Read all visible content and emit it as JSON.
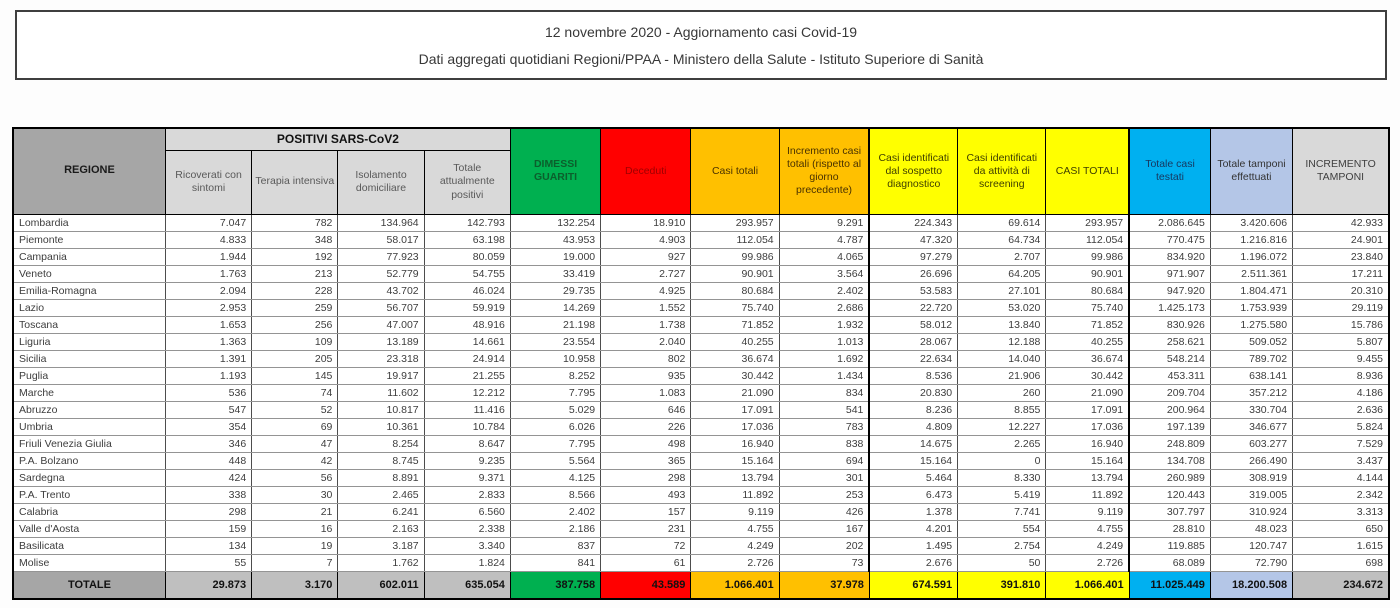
{
  "header": {
    "title": "12 novembre 2020 - Aggiornamento casi Covid-19",
    "subtitle": "Dati aggregati quotidiani Regioni/PPAA - Ministero della Salute - Istituto Superiore di Sanità"
  },
  "colors": {
    "green": "#00B050",
    "red": "#FF0000",
    "orange": "#FFC000",
    "yellow": "#FFFF00",
    "cyan": "#00B0F0",
    "light_blue": "#B4C6E7",
    "header_gray": "#A6A6A6",
    "subheader_gray": "#D9D9D9",
    "totale_gray": "#BFBFBF"
  },
  "table": {
    "regione_header": "REGIONE",
    "positivi_group_header": "POSITIVI SARS-CoV2",
    "columns": [
      {
        "label": "Ricoverati con sintomi"
      },
      {
        "label": "Terapia intensiva"
      },
      {
        "label": "Isolamento domiciliare"
      },
      {
        "label": "Totale attualmente positivi"
      },
      {
        "label": "DIMESSI GUARITI"
      },
      {
        "label": "Deceduti"
      },
      {
        "label": "Casi totali"
      },
      {
        "label": "Incremento casi totali (rispetto al giorno precedente)"
      },
      {
        "label": "Casi identificati dal sospetto diagnostico"
      },
      {
        "label": "Casi identificati da attività di screening"
      },
      {
        "label": "CASI TOTALI"
      },
      {
        "label": "Totale casi testati"
      },
      {
        "label": "Totale tamponi effettuati"
      },
      {
        "label": "INCREMENTO TAMPONI"
      }
    ],
    "rows": [
      [
        "Lombardia",
        "7.047",
        "782",
        "134.964",
        "142.793",
        "132.254",
        "18.910",
        "293.957",
        "9.291",
        "224.343",
        "69.614",
        "293.957",
        "2.086.645",
        "3.420.606",
        "42.933"
      ],
      [
        "Piemonte",
        "4.833",
        "348",
        "58.017",
        "63.198",
        "43.953",
        "4.903",
        "112.054",
        "4.787",
        "47.320",
        "64.734",
        "112.054",
        "770.475",
        "1.216.816",
        "24.901"
      ],
      [
        "Campania",
        "1.944",
        "192",
        "77.923",
        "80.059",
        "19.000",
        "927",
        "99.986",
        "4.065",
        "97.279",
        "2.707",
        "99.986",
        "834.920",
        "1.196.072",
        "23.840"
      ],
      [
        "Veneto",
        "1.763",
        "213",
        "52.779",
        "54.755",
        "33.419",
        "2.727",
        "90.901",
        "3.564",
        "26.696",
        "64.205",
        "90.901",
        "971.907",
        "2.511.361",
        "17.211"
      ],
      [
        "Emilia-Romagna",
        "2.094",
        "228",
        "43.702",
        "46.024",
        "29.735",
        "4.925",
        "80.684",
        "2.402",
        "53.583",
        "27.101",
        "80.684",
        "947.920",
        "1.804.471",
        "20.310"
      ],
      [
        "Lazio",
        "2.953",
        "259",
        "56.707",
        "59.919",
        "14.269",
        "1.552",
        "75.740",
        "2.686",
        "22.720",
        "53.020",
        "75.740",
        "1.425.173",
        "1.753.939",
        "29.119"
      ],
      [
        "Toscana",
        "1.653",
        "256",
        "47.007",
        "48.916",
        "21.198",
        "1.738",
        "71.852",
        "1.932",
        "58.012",
        "13.840",
        "71.852",
        "830.926",
        "1.275.580",
        "15.786"
      ],
      [
        "Liguria",
        "1.363",
        "109",
        "13.189",
        "14.661",
        "23.554",
        "2.040",
        "40.255",
        "1.013",
        "28.067",
        "12.188",
        "40.255",
        "258.621",
        "509.052",
        "5.807"
      ],
      [
        "Sicilia",
        "1.391",
        "205",
        "23.318",
        "24.914",
        "10.958",
        "802",
        "36.674",
        "1.692",
        "22.634",
        "14.040",
        "36.674",
        "548.214",
        "789.702",
        "9.455"
      ],
      [
        "Puglia",
        "1.193",
        "145",
        "19.917",
        "21.255",
        "8.252",
        "935",
        "30.442",
        "1.434",
        "8.536",
        "21.906",
        "30.442",
        "453.311",
        "638.141",
        "8.936"
      ],
      [
        "Marche",
        "536",
        "74",
        "11.602",
        "12.212",
        "7.795",
        "1.083",
        "21.090",
        "834",
        "20.830",
        "260",
        "21.090",
        "209.704",
        "357.212",
        "4.186"
      ],
      [
        "Abruzzo",
        "547",
        "52",
        "10.817",
        "11.416",
        "5.029",
        "646",
        "17.091",
        "541",
        "8.236",
        "8.855",
        "17.091",
        "200.964",
        "330.704",
        "2.636"
      ],
      [
        "Umbria",
        "354",
        "69",
        "10.361",
        "10.784",
        "6.026",
        "226",
        "17.036",
        "783",
        "4.809",
        "12.227",
        "17.036",
        "197.139",
        "346.677",
        "5.824"
      ],
      [
        "Friuli Venezia Giulia",
        "346",
        "47",
        "8.254",
        "8.647",
        "7.795",
        "498",
        "16.940",
        "838",
        "14.675",
        "2.265",
        "16.940",
        "248.809",
        "603.277",
        "7.529"
      ],
      [
        "P.A. Bolzano",
        "448",
        "42",
        "8.745",
        "9.235",
        "5.564",
        "365",
        "15.164",
        "694",
        "15.164",
        "0",
        "15.164",
        "134.708",
        "266.490",
        "3.437"
      ],
      [
        "Sardegna",
        "424",
        "56",
        "8.891",
        "9.371",
        "4.125",
        "298",
        "13.794",
        "301",
        "5.464",
        "8.330",
        "13.794",
        "260.989",
        "308.919",
        "4.144"
      ],
      [
        "P.A. Trento",
        "338",
        "30",
        "2.465",
        "2.833",
        "8.566",
        "493",
        "11.892",
        "253",
        "6.473",
        "5.419",
        "11.892",
        "120.443",
        "319.005",
        "2.342"
      ],
      [
        "Calabria",
        "298",
        "21",
        "6.241",
        "6.560",
        "2.402",
        "157",
        "9.119",
        "426",
        "1.378",
        "7.741",
        "9.119",
        "307.797",
        "310.924",
        "3.313"
      ],
      [
        "Valle d'Aosta",
        "159",
        "16",
        "2.163",
        "2.338",
        "2.186",
        "231",
        "4.755",
        "167",
        "4.201",
        "554",
        "4.755",
        "28.810",
        "48.023",
        "650"
      ],
      [
        "Basilicata",
        "134",
        "19",
        "3.187",
        "3.340",
        "837",
        "72",
        "4.249",
        "202",
        "1.495",
        "2.754",
        "4.249",
        "119.885",
        "120.747",
        "1.615"
      ],
      [
        "Molise",
        "55",
        "7",
        "1.762",
        "1.824",
        "841",
        "61",
        "2.726",
        "73",
        "2.676",
        "50",
        "2.726",
        "68.089",
        "72.790",
        "698"
      ]
    ],
    "totale_row": [
      "TOTALE",
      "29.873",
      "3.170",
      "602.011",
      "635.054",
      "387.758",
      "43.589",
      "1.066.401",
      "37.978",
      "674.591",
      "391.810",
      "1.066.401",
      "11.025.449",
      "18.200.508",
      "234.672"
    ]
  }
}
